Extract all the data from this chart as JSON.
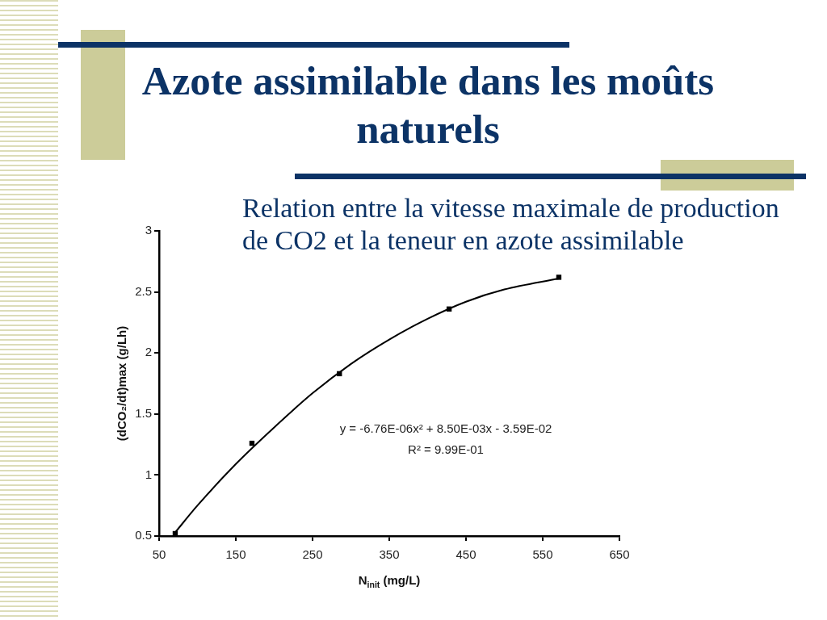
{
  "chart_data": {
    "type": "scatter",
    "title": "Azote assimilable dans les moûts naturels",
    "subtitle": "Relation entre la vitesse maximale de production de CO2 et la teneur en azote assimilable",
    "xlabel": "N$_{init}$ (mg/L)",
    "ylabel": "(dCO₂/dt)max (g/Lh)",
    "annotations": [
      "y = -6.76E-06x² + 8.50E-03x - 3.59E-02",
      "R² = 9.99E-01"
    ],
    "xlim": [
      50,
      650
    ],
    "xticks": [
      50,
      150,
      250,
      350,
      450,
      550,
      650
    ],
    "ylim": [
      0.5,
      3
    ],
    "yticks": [
      0.5,
      1,
      1.5,
      2,
      2.5,
      3
    ],
    "grid": false,
    "legend": false,
    "marker": "square",
    "series": [
      {
        "type": "scatter",
        "color": "#000000",
        "x": [
          71,
          171,
          285,
          428,
          571
        ],
        "values": [
          0.52,
          1.26,
          1.83,
          2.36,
          2.62
        ]
      },
      {
        "type": "line",
        "color": "#000000",
        "marker": "none",
        "x": [
          71,
          100,
          150,
          200,
          250,
          300,
          350,
          400,
          450,
          500,
          571
        ],
        "values": [
          0.53,
          0.75,
          1.09,
          1.39,
          1.67,
          1.91,
          2.11,
          2.28,
          2.42,
          2.52,
          2.61
        ]
      }
    ]
  }
}
